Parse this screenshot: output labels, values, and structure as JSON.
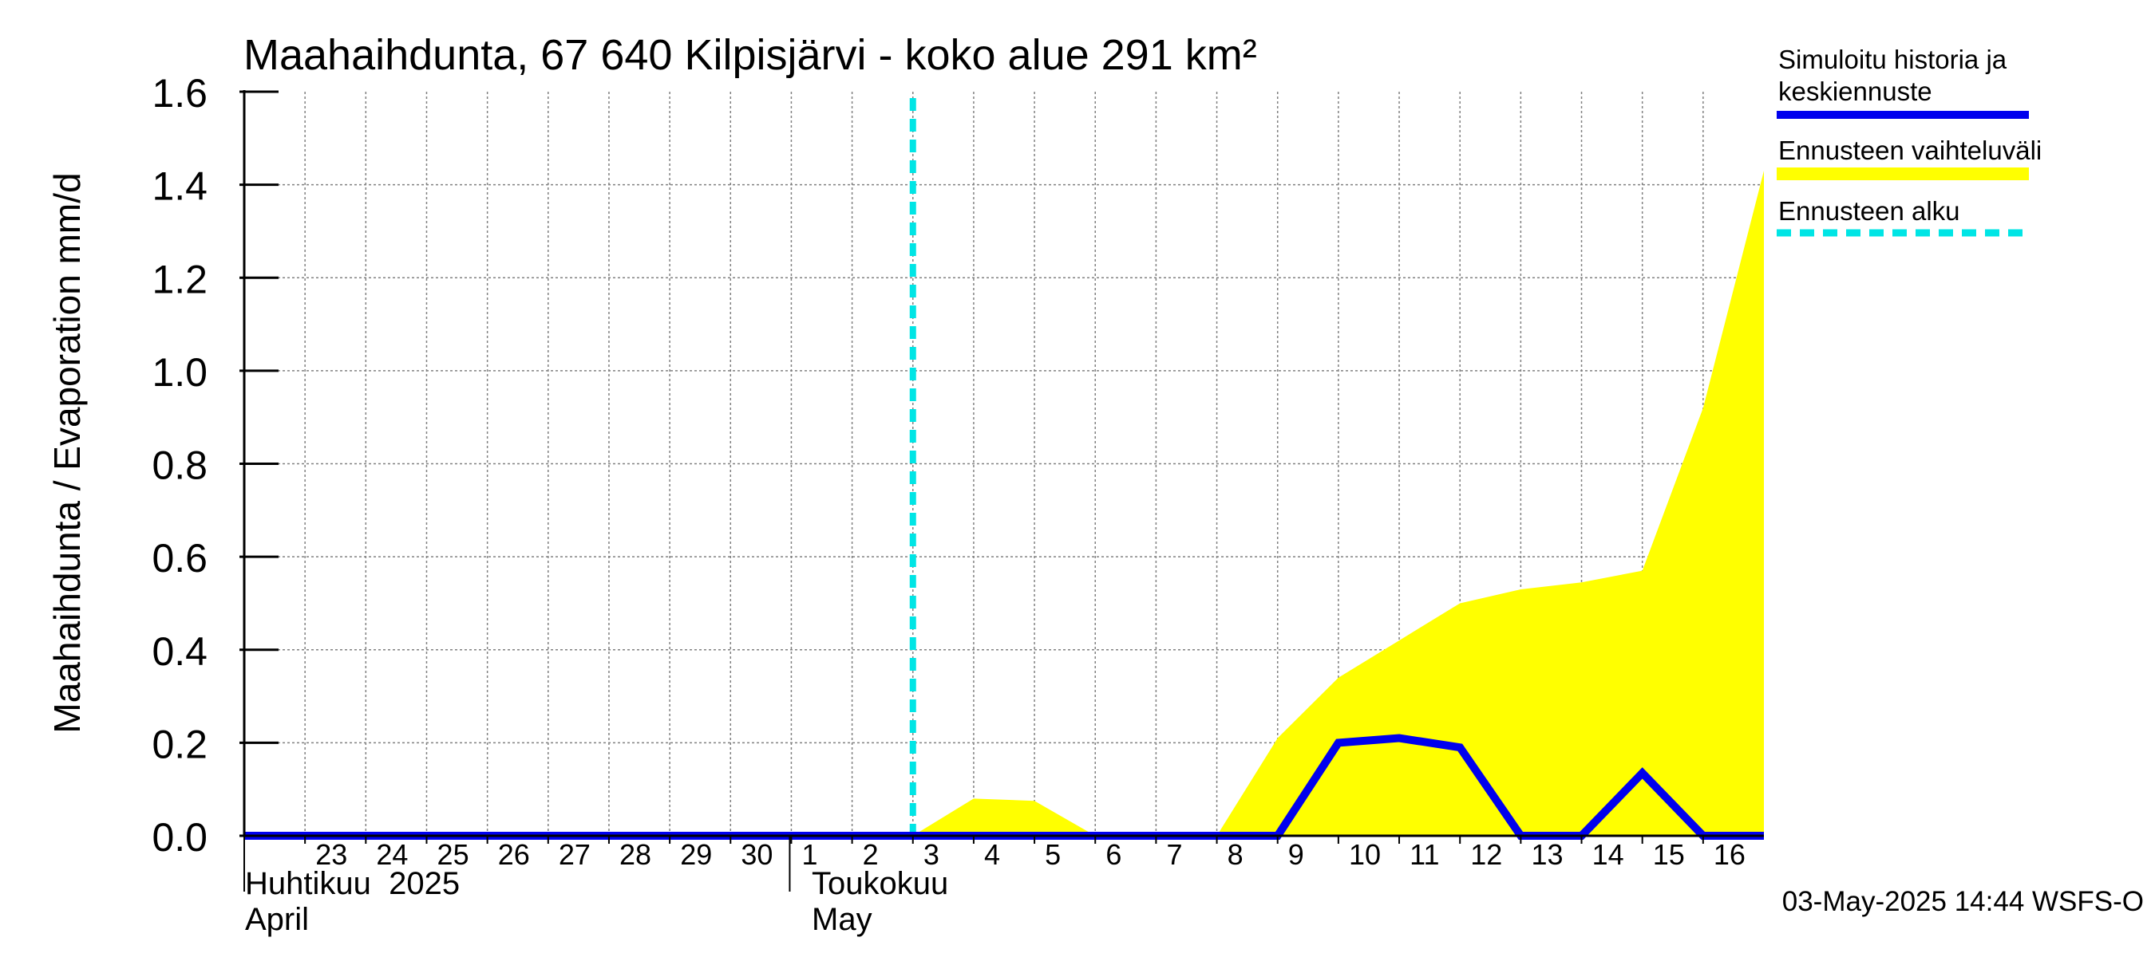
{
  "chart_data": {
    "type": "area",
    "title": "Maahaihdunta, 67 640 Kilpisjärvi - koko alue 291 km²",
    "ylabel": "Maahaihdunta / Evaporation   mm/d",
    "ylim": [
      0,
      1.6
    ],
    "yticks": [
      "0.0",
      "0.2",
      "0.4",
      "0.6",
      "0.8",
      "1.0",
      "1.2",
      "1.4",
      "1.6"
    ],
    "grid": true,
    "legend_placement": "right",
    "x_day_labels": [
      "23",
      "24",
      "25",
      "26",
      "27",
      "28",
      "29",
      "30",
      "1",
      "2",
      "3",
      "4",
      "5",
      "6",
      "7",
      "8",
      "9",
      "10",
      "11",
      "12",
      "13",
      "14",
      "15",
      "16"
    ],
    "month_labels": [
      {
        "fi": "Huhtikuu  2025",
        "en": "April"
      },
      {
        "fi": "Toukokuu",
        "en": "May"
      }
    ],
    "forecast_start": "2025-05-03",
    "series": [
      {
        "name": "Simuloitu historia ja keskiennuste",
        "color": "#0000ee",
        "x": [
          "2025-04-22",
          "2025-05-08",
          "2025-05-09",
          "2025-05-10",
          "2025-05-11",
          "2025-05-12",
          "2025-05-13",
          "2025-05-14",
          "2025-05-15",
          "2025-05-16",
          "2025-05-17"
        ],
        "values": [
          0,
          0,
          0,
          0.2,
          0.21,
          0.19,
          0,
          0,
          0.135,
          0,
          0
        ]
      },
      {
        "name": "Ennusteen vaihteluväli",
        "color": "#ffff00",
        "x": [
          "2025-05-03",
          "2025-05-04",
          "2025-05-05",
          "2025-05-06",
          "2025-05-07",
          "2025-05-08",
          "2025-05-09",
          "2025-05-10",
          "2025-05-11",
          "2025-05-12",
          "2025-05-13",
          "2025-05-14",
          "2025-05-15",
          "2025-05-16",
          "2025-05-17"
        ],
        "upper": [
          0,
          0.08,
          0.075,
          0,
          0,
          0,
          0.21,
          0.34,
          0.42,
          0.5,
          0.53,
          0.545,
          0.57,
          0.92,
          1.43
        ],
        "lower": [
          0,
          0,
          0,
          0,
          0,
          0,
          0,
          0,
          0,
          0,
          0,
          0,
          0,
          0,
          0
        ]
      },
      {
        "name": "Ennusteen alku",
        "color": "#00e5e5"
      }
    ],
    "timestamp": "03-May-2025 14:44 WSFS-O"
  }
}
